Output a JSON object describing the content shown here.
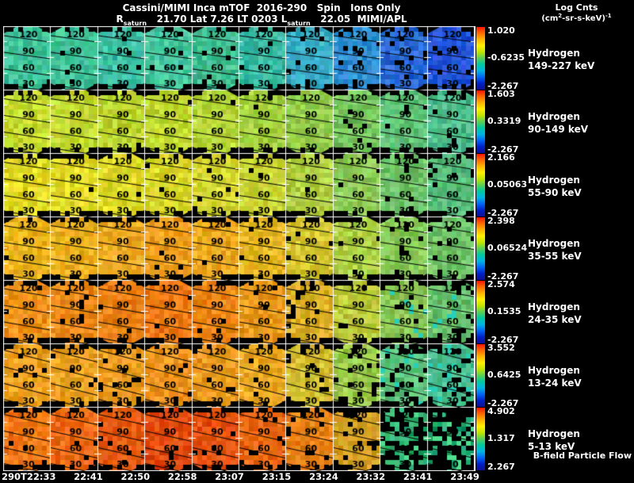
{
  "header": {
    "title": "Cassini/MIMI Inca mTOF  2016-290   Spin   Ions Only",
    "subtitle": {
      "r": "R",
      "r_sub": "saturn",
      "mid": "   21.70 Lat 7.26 LT 0203 ",
      "l": "L",
      "l_sub": "saturn",
      "end": "   22.05  MIMI/APL"
    },
    "colorbar_title": "Log Cnts",
    "units": {
      "pre": "(cm",
      "sup_a": "2",
      "mid": "-sr-s-keV)",
      "sup_b": "-1"
    }
  },
  "chart_data": {
    "type": "heatmap",
    "panel_y_tick_labels": [
      "120",
      "90",
      "60",
      "30"
    ],
    "x_tick_labels": [
      "290T22:33",
      "22:41",
      "22:50",
      "22:58",
      "23:07",
      "23:15",
      "23:24",
      "23:32",
      "23:41",
      "23:49"
    ],
    "colorbar_gradient": [
      "#ff1400",
      "#ff6a00",
      "#ffb400",
      "#fff000",
      "#c0e400",
      "#58d054",
      "#00c8a0",
      "#00b4e4",
      "#0064f4",
      "#0020c8",
      "#101090"
    ],
    "accent_speckle_color": "#28d0b8",
    "rows": [
      {
        "species": "Hydrogen",
        "energy": "149-227 keV",
        "cbar_max": "1.020",
        "cbar_mid": "-0.6235",
        "cbar_min": "-2.267",
        "slope": 8,
        "cols": [
          [
            "#3fc49a",
            0.02
          ],
          [
            "#43c79a",
            0.02
          ],
          [
            "#3fc0a4",
            0.02
          ],
          [
            "#45c79e",
            0.02
          ],
          [
            "#40bf92",
            0.03
          ],
          [
            "#3cbda6",
            0.03
          ],
          [
            "#36acc4",
            0.03
          ],
          [
            "#2e8ed2",
            0.05
          ],
          [
            "#2a6ad8",
            0.07
          ],
          [
            "#2556da",
            0.09
          ]
        ]
      },
      {
        "species": "Hydrogen",
        "energy": "90-149 keV",
        "cbar_max": "1.603",
        "cbar_mid": "0.3319",
        "cbar_min": "-2.267",
        "slope": 9,
        "cols": [
          [
            "#c6dc2e",
            0.01
          ],
          [
            "#c2da30",
            0.01
          ],
          [
            "#bed832",
            0.01
          ],
          [
            "#c2da30",
            0.01
          ],
          [
            "#b6d636",
            0.02
          ],
          [
            "#a6d23e",
            0.02
          ],
          [
            "#92cc4a",
            0.02
          ],
          [
            "#78c65e",
            0.04
          ],
          [
            "#5ec276",
            0.06
          ],
          [
            "#4ebe8a",
            0.07
          ]
        ]
      },
      {
        "species": "Hydrogen",
        "energy": "55-90 keV",
        "cbar_max": "2.166",
        "cbar_mid": "0.05063",
        "cbar_min": "-2.267",
        "slope": 9,
        "cols": [
          [
            "#e4dc26",
            0.01
          ],
          [
            "#e2da26",
            0.01
          ],
          [
            "#deda28",
            0.01
          ],
          [
            "#dad82a",
            0.01
          ],
          [
            "#d4d62e",
            0.02
          ],
          [
            "#cad434",
            0.02
          ],
          [
            "#b2d042",
            0.02
          ],
          [
            "#8eca56",
            0.04
          ],
          [
            "#6ec46a",
            0.06
          ],
          [
            "#58be7c",
            0.07
          ]
        ]
      },
      {
        "species": "Hydrogen",
        "energy": "35-55 keV",
        "cbar_max": "2.398",
        "cbar_mid": "0.06524",
        "cbar_min": "-2.267",
        "slope": 9,
        "cols": [
          [
            "#eeb61e",
            0.02
          ],
          [
            "#ecb020",
            0.02
          ],
          [
            "#eca822",
            0.02
          ],
          [
            "#f0a01e",
            0.02
          ],
          [
            "#eeaa20",
            0.02
          ],
          [
            "#e8b824",
            0.03
          ],
          [
            "#d6c830",
            0.03
          ],
          [
            "#aed044",
            0.05
          ],
          [
            "#88ca58",
            0.07
          ],
          [
            "#70c468",
            0.08
          ]
        ]
      },
      {
        "species": "Hydrogen",
        "energy": "24-35 keV",
        "cbar_max": "2.574",
        "cbar_mid": "0.1535",
        "cbar_min": "-2.267",
        "slope": 10,
        "cols": [
          [
            "#f0921a",
            0.03
          ],
          [
            "#ee8a18",
            0.03
          ],
          [
            "#ec8216",
            0.03
          ],
          [
            "#f07c14",
            0.03
          ],
          [
            "#ee8616",
            0.03
          ],
          [
            "#ea981c",
            0.04
          ],
          [
            "#dcb026",
            0.05
          ],
          [
            "#bcca3a",
            0.07
          ],
          [
            "#8ac656",
            0.1
          ],
          [
            "#68c26c",
            0.12
          ]
        ]
      },
      {
        "species": "Hydrogen",
        "energy": "13-24 keV",
        "cbar_max": "3.552",
        "cbar_mid": "0.6425",
        "cbar_min": "-2.267",
        "slope": 15,
        "cols": [
          [
            "#eea020",
            0.04
          ],
          [
            "#eca222",
            0.04
          ],
          [
            "#ea9a20",
            0.04
          ],
          [
            "#ee941e",
            0.04
          ],
          [
            "#ec9c20",
            0.04
          ],
          [
            "#eaa822",
            0.05
          ],
          [
            "#d4be32",
            0.07
          ],
          [
            "#9ccc4a",
            0.1
          ],
          [
            "#5cc47c",
            0.14
          ],
          [
            "#48c090",
            0.16
          ]
        ]
      },
      {
        "species": "Hydrogen",
        "energy": "5-13 keV",
        "note": "B-field Particle Flow",
        "cbar_max": "4.902",
        "cbar_mid": "1.317",
        "cbar_min": "2.267",
        "slope": 13,
        "cols": [
          [
            "#ee7614",
            0.04
          ],
          [
            "#ec6812",
            0.04
          ],
          [
            "#e65a10",
            0.04
          ],
          [
            "#e24a0e",
            0.04
          ],
          [
            "#e6520f",
            0.04
          ],
          [
            "#ea6612",
            0.05
          ],
          [
            "#e67e14",
            0.08
          ],
          [
            "#d6a022",
            0.14
          ],
          [
            "#2cb06c",
            0.52
          ],
          [
            "#28ac74",
            0.58
          ]
        ]
      }
    ]
  }
}
